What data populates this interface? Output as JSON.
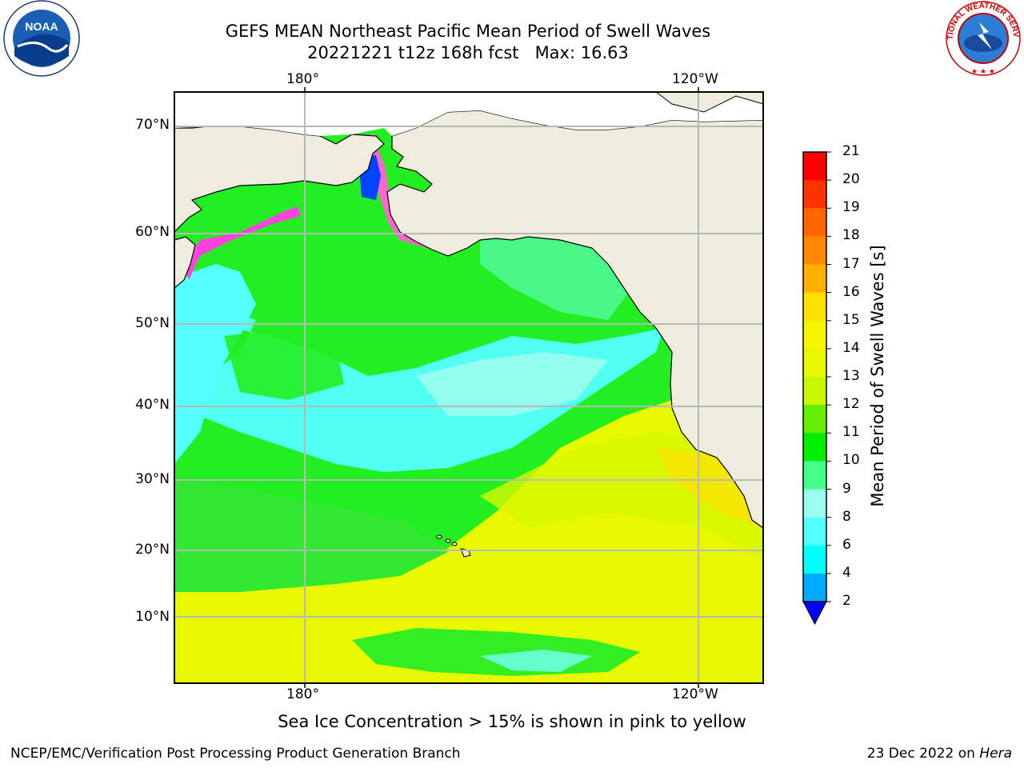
{
  "header": {
    "title_line1": "GEFS MEAN Northeast Pacific Mean Period of Swell Waves",
    "title_line2": "20221221 t12z 168h fcst   Max: 16.63"
  },
  "map": {
    "lon_labels_top": [
      "180°",
      "120°W"
    ],
    "lon_labels_bottom": [
      "180°",
      "120°W"
    ],
    "lat_labels": [
      "70°N",
      "60°N",
      "50°N",
      "40°N",
      "30°N",
      "20°N",
      "10°N"
    ],
    "land_color": "#eeecdc",
    "grid_color": "#b8b8b8"
  },
  "colorbar": {
    "title": "Mean Period of Swell Waves [s]",
    "ticks": [
      "21",
      "20",
      "19",
      "18",
      "17",
      "16",
      "15",
      "14",
      "13",
      "12",
      "11",
      "10",
      "9",
      "8",
      "6",
      "4",
      "2"
    ],
    "colors": [
      "#ff0000",
      "#ff3300",
      "#ff6600",
      "#ff8800",
      "#ffb000",
      "#ffe000",
      "#f6f600",
      "#e8f800",
      "#c8f800",
      "#66ee00",
      "#00ee00",
      "#44ff88",
      "#99ffee",
      "#55ffff",
      "#00ffff",
      "#00aaff",
      "#0000ff"
    ]
  },
  "footer": {
    "note": "Sea Ice Concentration > 15% is shown in pink to yellow",
    "left": "NCEP/EMC/Verification Post Processing Product Generation Branch",
    "right_prefix": "23 Dec 2022 on ",
    "right_host": "Hera"
  },
  "logos": {
    "noaa_text": "NOAA",
    "nws_text": "NATIONAL WEATHER SERVICE"
  }
}
